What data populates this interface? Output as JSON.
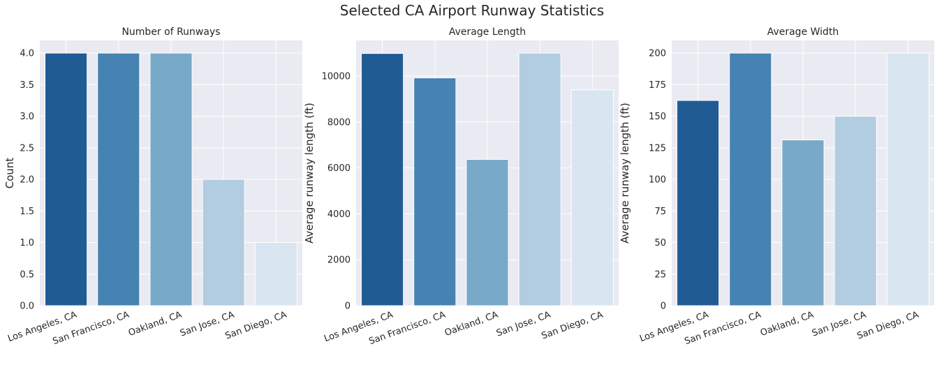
{
  "title": "Selected CA Airport Runway Statistics",
  "chart_data": [
    {
      "type": "bar",
      "title": "Number of Runways",
      "xlabel": "",
      "ylabel": "Count",
      "categories": [
        "Los Angeles, CA",
        "San Francisco, CA",
        "Oakland, CA",
        "San Jose, CA",
        "San Diego, CA"
      ],
      "values": [
        4,
        4,
        4,
        2,
        1
      ],
      "ylim": [
        0,
        4.2
      ],
      "yticks": [
        "0.0",
        "0.5",
        "1.0",
        "1.5",
        "2.0",
        "2.5",
        "3.0",
        "3.5",
        "4.0"
      ],
      "grid": true
    },
    {
      "type": "bar",
      "title": "Average Length",
      "xlabel": "",
      "ylabel": "Average runway length (ft)",
      "categories": [
        "Los Angeles, CA",
        "San Francisco, CA",
        "Oakland, CA",
        "San Jose, CA",
        "San Diego, CA"
      ],
      "values": [
        10985,
        9920,
        6370,
        11000,
        9400
      ],
      "ylim": [
        0,
        11550
      ],
      "yticks": [
        "0",
        "2000",
        "4000",
        "6000",
        "8000",
        "10000"
      ],
      "grid": true
    },
    {
      "type": "bar",
      "title": "Average Width",
      "xlabel": "",
      "ylabel": "Average runway length (ft)",
      "categories": [
        "Los Angeles, CA",
        "San Francisco, CA",
        "Oakland, CA",
        "San Jose, CA",
        "San Diego, CA"
      ],
      "values": [
        162.5,
        200,
        131.25,
        150,
        200
      ],
      "ylim": [
        0,
        210
      ],
      "yticks": [
        "0",
        "25",
        "50",
        "75",
        "100",
        "125",
        "150",
        "175",
        "200"
      ],
      "grid": true
    }
  ],
  "colors": {
    "bars": [
      "#215b93",
      "#4682b2",
      "#78a9c9",
      "#b2cde1",
      "#d9e6f2"
    ],
    "background": "#eaeaf2",
    "grid": "#ffffff",
    "text": "#262626"
  }
}
